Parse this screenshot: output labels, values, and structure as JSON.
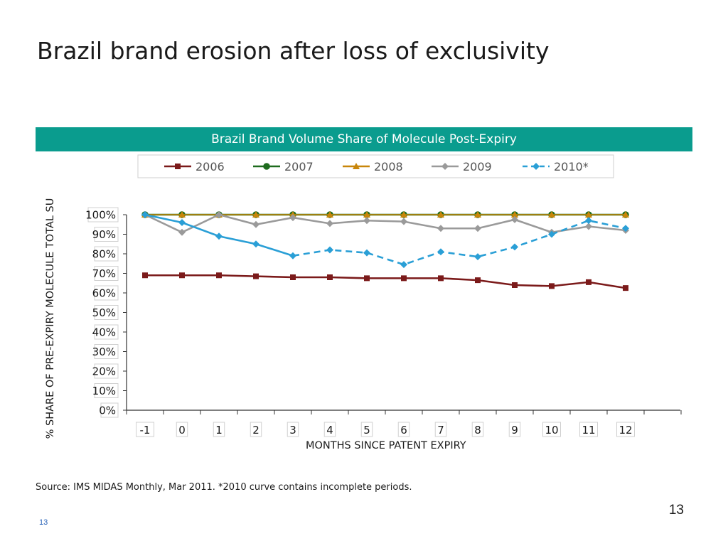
{
  "slide": {
    "title": "Brazil brand erosion after loss of exclusivity",
    "source": "Source: IMS MIDAS Monthly, Mar 2011. *2010 curve contains incomplete periods.",
    "page_number": "13",
    "footer_page_number": "13"
  },
  "chart_data": {
    "type": "line",
    "title": "Brazil Brand Volume Share of Molecule Post-Expiry",
    "xlabel": "MONTHS SINCE PATENT EXPIRY",
    "ylabel": "% SHARE OF PRE-EXPIRY MOLECULE TOTAL SU",
    "x": [
      -1,
      0,
      1,
      2,
      3,
      4,
      5,
      6,
      7,
      8,
      9,
      10,
      11,
      12
    ],
    "x_tick_labels": [
      "-1",
      "0",
      "1",
      "2",
      "3",
      "4",
      "5",
      "6",
      "7",
      "8",
      "9",
      "10",
      "11",
      "12"
    ],
    "ylim": [
      0,
      100
    ],
    "y_tick_labels": [
      "100%",
      "90%",
      "80%",
      "70%",
      "60%",
      "50%",
      "40%",
      "30%",
      "20%",
      "10%",
      "0%"
    ],
    "grid": false,
    "legend_position": "top",
    "series": [
      {
        "name": "2006",
        "color": "#7b1a1a",
        "marker": "square",
        "dashed": false,
        "values": [
          69,
          69,
          69,
          68.5,
          68,
          68,
          67.5,
          67.5,
          67.5,
          66.5,
          64,
          63.5,
          65.5,
          62.5
        ]
      },
      {
        "name": "2007",
        "color": "#1e6b1e",
        "marker": "circle",
        "dashed": false,
        "values": [
          100,
          100,
          100,
          100,
          100,
          100,
          100,
          100,
          100,
          100,
          100,
          100,
          100,
          100
        ]
      },
      {
        "name": "2008",
        "color": "#c8860a",
        "marker": "triangle",
        "dashed": false,
        "values": [
          100,
          100,
          100,
          100,
          100,
          100,
          100,
          100,
          100,
          100,
          100,
          100,
          100,
          100
        ]
      },
      {
        "name": "2009",
        "color": "#9a9a9a",
        "marker": "diamond",
        "dashed": false,
        "values": [
          100,
          91,
          100,
          95,
          98.5,
          95.5,
          97,
          96.5,
          93,
          93,
          97.5,
          91,
          94,
          92
        ]
      },
      {
        "name": "2010*",
        "color": "#2a9fd6",
        "marker": "diamond",
        "dashed_from_index": 4,
        "values": [
          100,
          96,
          89,
          85,
          79,
          82,
          80.5,
          74.5,
          81,
          78.5,
          83.5,
          90,
          97,
          93
        ]
      }
    ]
  }
}
